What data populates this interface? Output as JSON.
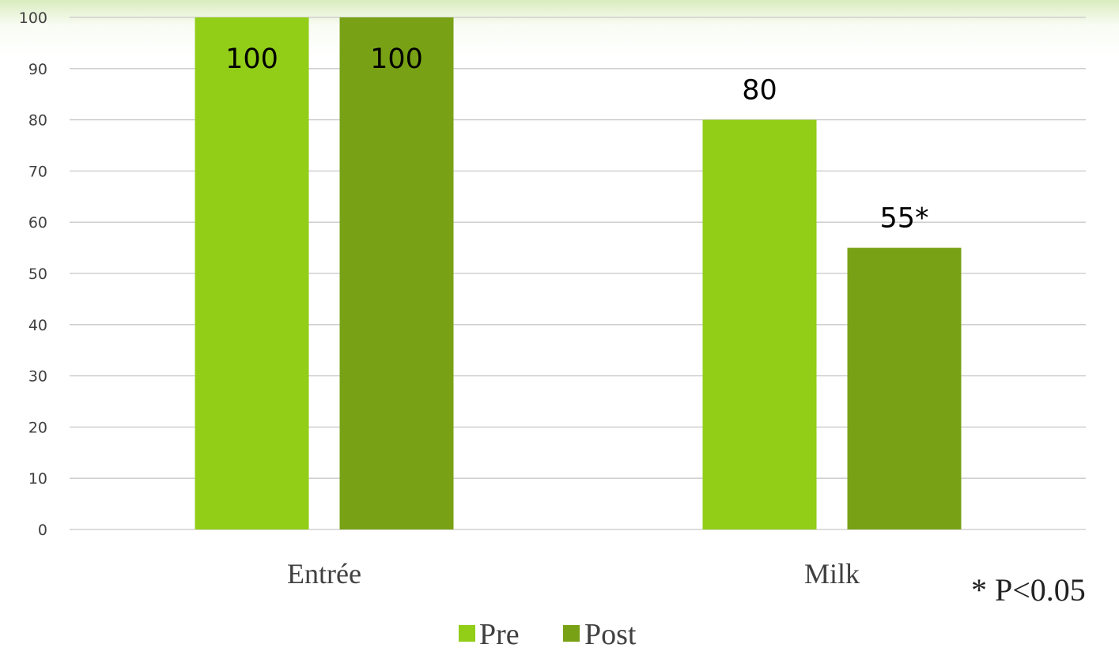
{
  "chart_data": {
    "type": "bar",
    "categories": [
      "Entrée",
      "Milk"
    ],
    "series": [
      {
        "name": "Pre",
        "values": [
          100,
          80
        ],
        "labels": [
          "100",
          "80"
        ],
        "color": "#92cd18"
      },
      {
        "name": "Post",
        "values": [
          100,
          55
        ],
        "labels": [
          "100",
          "55*"
        ],
        "color": "#79a115"
      }
    ],
    "ylim": [
      0,
      100
    ],
    "yticks": [
      "0",
      "10",
      "20",
      "30",
      "40",
      "50",
      "60",
      "70",
      "80",
      "90",
      "100"
    ],
    "grid": true,
    "legend_position": "bottom",
    "annotation": "* P<0.05"
  }
}
